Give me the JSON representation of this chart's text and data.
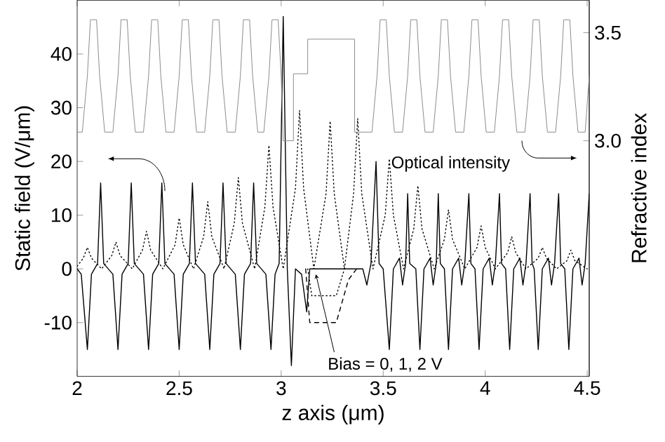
{
  "chart_data": {
    "type": "line",
    "xlabel": "z axis (μm)",
    "ylabel": "Static field (V/μm)",
    "y2label": "Refractive index",
    "xlim": [
      2,
      4.51
    ],
    "xticks": [
      2,
      2.5,
      3,
      3.5,
      4,
      4.5
    ],
    "ylim": [
      -20,
      50
    ],
    "yticks": [
      -10,
      0,
      10,
      20,
      30,
      40
    ],
    "y2lim": [
      1.91,
      3.65
    ],
    "y2ticks": [
      {
        "value": 3,
        "label": "3.0"
      },
      {
        "value": 3.5,
        "label": "3.5"
      }
    ],
    "annotations": [
      {
        "text": "Bias = 0, 1, 2 V",
        "x": 3.17,
        "y": -1
      }
    ],
    "series": [
      {
        "color": "#8c8c8c",
        "line_style": "solid",
        "axis": "y2",
        "x": [
          2.0,
          2.025,
          2.05,
          2.065,
          2.095,
          2.11,
          2.135,
          2.175,
          2.2,
          2.215,
          2.245,
          2.26,
          2.285,
          2.325,
          2.35,
          2.365,
          2.395,
          2.41,
          2.435,
          2.475,
          2.5,
          2.515,
          2.545,
          2.56,
          2.585,
          2.625,
          2.65,
          2.665,
          2.695,
          2.71,
          2.735,
          2.775,
          2.8,
          2.815,
          2.845,
          2.86,
          2.885,
          2.915,
          2.94,
          2.955,
          2.985,
          3.0,
          3.01,
          3.06,
          3.06,
          3.13,
          3.13,
          3.36,
          3.36,
          3.445,
          3.47,
          3.485,
          3.515,
          3.53,
          3.555,
          3.595,
          3.62,
          3.635,
          3.665,
          3.68,
          3.705,
          3.745,
          3.77,
          3.785,
          3.815,
          3.83,
          3.855,
          3.895,
          3.92,
          3.935,
          3.965,
          3.98,
          4.005,
          4.045,
          4.07,
          4.085,
          4.115,
          4.13,
          4.155,
          4.195,
          4.22,
          4.235,
          4.265,
          4.28,
          4.305,
          4.345,
          4.37,
          4.385,
          4.415,
          4.43,
          4.455,
          4.49,
          4.51
        ],
        "values": [
          3.04,
          3.04,
          3.3,
          3.56,
          3.56,
          3.3,
          3.04,
          3.04,
          3.3,
          3.56,
          3.56,
          3.3,
          3.04,
          3.04,
          3.3,
          3.56,
          3.56,
          3.3,
          3.04,
          3.04,
          3.3,
          3.56,
          3.56,
          3.3,
          3.04,
          3.04,
          3.3,
          3.56,
          3.56,
          3.3,
          3.04,
          3.04,
          3.3,
          3.56,
          3.56,
          3.3,
          3.04,
          3.04,
          3.3,
          3.56,
          3.56,
          3.3,
          3.0,
          3.0,
          3.31,
          3.31,
          3.47,
          3.47,
          3.04,
          3.04,
          3.3,
          3.56,
          3.56,
          3.3,
          3.04,
          3.04,
          3.3,
          3.56,
          3.56,
          3.3,
          3.04,
          3.04,
          3.3,
          3.56,
          3.56,
          3.3,
          3.04,
          3.04,
          3.3,
          3.56,
          3.56,
          3.3,
          3.04,
          3.04,
          3.3,
          3.56,
          3.56,
          3.3,
          3.04,
          3.04,
          3.3,
          3.56,
          3.56,
          3.3,
          3.04,
          3.04,
          3.3,
          3.56,
          3.56,
          3.3,
          3.04,
          3.04,
          3.3
        ]
      },
      {
        "name": "Optical intensity",
        "color": "#000000",
        "line_style": "dotted",
        "x": [
          2.0,
          2.03,
          2.05,
          2.07,
          2.12,
          2.17,
          2.19,
          2.21,
          2.27,
          2.32,
          2.34,
          2.36,
          2.42,
          2.48,
          2.5,
          2.52,
          2.57,
          2.62,
          2.64,
          2.66,
          2.72,
          2.77,
          2.79,
          2.81,
          2.87,
          2.92,
          2.94,
          2.96,
          3.01,
          3.07,
          3.09,
          3.11,
          3.16,
          3.22,
          3.24,
          3.26,
          3.31,
          3.355,
          3.375,
          3.395,
          3.45,
          3.51,
          3.53,
          3.55,
          3.6,
          3.65,
          3.67,
          3.69,
          3.75,
          3.8,
          3.82,
          3.84,
          3.9,
          3.96,
          3.98,
          4.0,
          4.05,
          4.11,
          4.13,
          4.15,
          4.2,
          4.26,
          4.28,
          4.3,
          4.35,
          4.4,
          4.42,
          4.44,
          4.5
        ],
        "values": [
          0.5,
          2,
          4,
          2,
          0,
          2.5,
          5,
          2.5,
          0,
          3.5,
          7,
          3.5,
          0,
          4.5,
          9.5,
          4.5,
          0,
          6,
          12.5,
          6,
          0,
          8.5,
          17,
          8.5,
          0,
          11.5,
          23,
          11.5,
          0,
          15,
          29.5,
          15,
          0,
          14,
          27.5,
          14,
          0,
          14,
          28,
          14,
          0,
          10,
          20.5,
          10,
          0,
          7.5,
          15.5,
          7.5,
          0,
          5.5,
          11,
          5.5,
          0,
          4,
          8,
          4,
          0,
          3,
          6,
          3,
          0,
          2,
          4,
          2,
          0,
          1.5,
          3.5,
          1.5,
          0
        ]
      },
      {
        "color": "#000000",
        "line_style": "dashed",
        "x": [
          3.12,
          3.14,
          3.27,
          3.33,
          3.37
        ],
        "values": [
          0,
          -10,
          -10,
          -2,
          0
        ]
      },
      {
        "color": "#000000",
        "line_style": "dotted",
        "x": [
          3.13,
          3.15,
          3.27,
          3.31
        ],
        "values": [
          0,
          -5,
          -5,
          0
        ]
      },
      {
        "color": "#000000",
        "line_style": "solid",
        "x": [
          2.0,
          2.02,
          2.05,
          2.07,
          2.1,
          2.115,
          2.13,
          2.175,
          2.2,
          2.22,
          2.25,
          2.265,
          2.28,
          2.325,
          2.35,
          2.37,
          2.4,
          2.415,
          2.43,
          2.475,
          2.5,
          2.52,
          2.55,
          2.565,
          2.58,
          2.625,
          2.65,
          2.67,
          2.7,
          2.715,
          2.73,
          2.775,
          2.8,
          2.82,
          2.85,
          2.865,
          2.88,
          2.925,
          2.95,
          2.97,
          2.99,
          3.01,
          3.03,
          3.05,
          3.07,
          3.1,
          3.125,
          3.14,
          3.4,
          3.42,
          3.44,
          3.465,
          3.48,
          3.5,
          3.53,
          3.55,
          3.58,
          3.595,
          3.61,
          3.62,
          3.63,
          3.66,
          3.68,
          3.7,
          3.73,
          3.745,
          3.76,
          3.77,
          3.78,
          3.8,
          3.82,
          3.84,
          3.87,
          3.885,
          3.9,
          3.92,
          3.93,
          3.95,
          3.97,
          3.99,
          4.02,
          4.035,
          4.05,
          4.07,
          4.08,
          4.1,
          4.12,
          4.14,
          4.17,
          4.185,
          4.2,
          4.22,
          4.23,
          4.24,
          4.26,
          4.28,
          4.31,
          4.325,
          4.34,
          4.36,
          4.37,
          4.39,
          4.41,
          4.43,
          4.46,
          4.475,
          4.49,
          4.51
        ],
        "values": [
          0,
          -1,
          -15,
          -1,
          1,
          16,
          1,
          -1,
          -15,
          -1,
          1,
          16,
          1,
          -1,
          -15,
          -1,
          1,
          16,
          1,
          -1,
          -15,
          -1,
          1,
          16,
          1,
          -1,
          -15,
          -1,
          1,
          16,
          1,
          -1,
          -15,
          -1,
          1,
          16,
          1,
          -1,
          -15,
          -1,
          1,
          47,
          0,
          -18,
          0,
          -1,
          -8,
          0,
          0,
          -3,
          1,
          20,
          1,
          0,
          -15,
          0,
          2,
          -3,
          1,
          14,
          1,
          0,
          -15,
          0,
          2,
          -3,
          1,
          14,
          1,
          0,
          -15,
          0,
          2,
          -3,
          1,
          14,
          1,
          0,
          -15,
          0,
          2,
          -3,
          1,
          14,
          1,
          0,
          -15,
          0,
          2,
          -3,
          1,
          14,
          1,
          0,
          -15,
          0,
          2,
          -3,
          1,
          14,
          1,
          0,
          -15,
          0,
          2,
          -3,
          1,
          14
        ]
      }
    ]
  }
}
